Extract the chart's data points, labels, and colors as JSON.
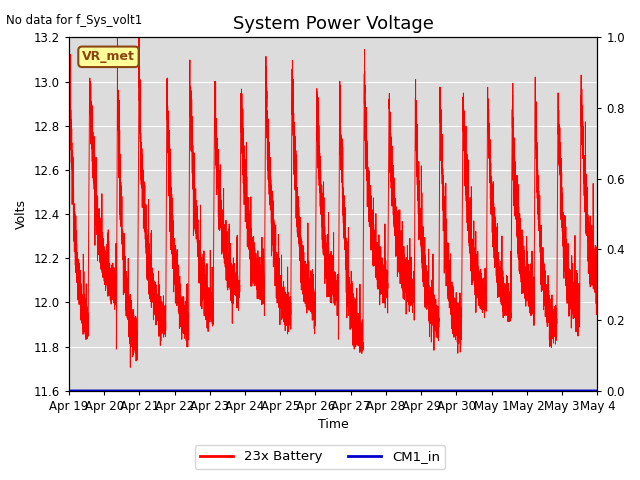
{
  "title": "System Power Voltage",
  "top_left_text": "No data for f_Sys_volt1",
  "ylabel": "Volts",
  "xlabel": "Time",
  "right_ylabel_ticks": [
    0.0,
    0.2,
    0.4,
    0.6,
    0.8,
    1.0
  ],
  "ylim": [
    11.6,
    13.2
  ],
  "right_ylim": [
    0.0,
    1.0
  ],
  "background_color": "#ffffff",
  "plot_bg_color": "#dcdcdc",
  "line_color_battery": "#ff0000",
  "line_color_cm1": "#0000cc",
  "legend_labels": [
    "23x Battery",
    "CM1_in"
  ],
  "annotation_label": "VR_met",
  "annotation_bg": "#ffff99",
  "annotation_border": "#8b4513",
  "x_tick_labels": [
    "Apr 19",
    "Apr 20",
    "Apr 21",
    "Apr 22",
    "Apr 23",
    "Apr 24",
    "Apr 25",
    "Apr 26",
    "Apr 27",
    "Apr 28",
    "Apr 29",
    "Apr 30",
    "May 1",
    "May 2",
    "May 3",
    "May 4"
  ],
  "title_fontsize": 13,
  "label_fontsize": 9,
  "tick_fontsize": 8.5,
  "figsize": [
    6.4,
    4.8
  ],
  "dpi": 100
}
